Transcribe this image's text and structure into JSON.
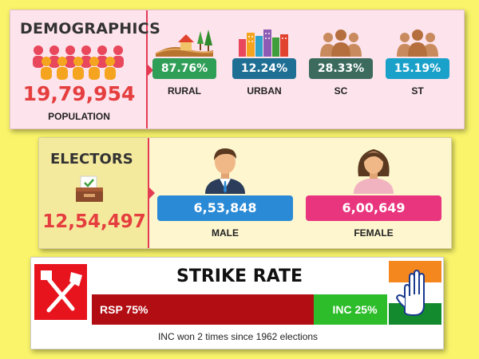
{
  "demographics": {
    "title": "DEMOGRAPHICS",
    "population_value": "19,79,954",
    "population_label": "POPULATION",
    "stats": [
      {
        "value": "87.76%",
        "label": "RURAL",
        "color": "#2f9e57"
      },
      {
        "value": "12.24%",
        "label": "URBAN",
        "color": "#1f6f95"
      },
      {
        "value": "28.33%",
        "label": "SC",
        "color": "#3c6b5e"
      },
      {
        "value": "15.19%",
        "label": "ST",
        "color": "#1aa1c9"
      }
    ]
  },
  "electors": {
    "title": "ELECTORS",
    "total_value": "12,54,497",
    "male": {
      "value": "6,53,848",
      "label": "MALE",
      "color": "#2a8ad6"
    },
    "female": {
      "value": "6,00,649",
      "label": "FEMALE",
      "color": "#e9347e"
    }
  },
  "strike_rate": {
    "title": "STRIKE RATE",
    "rsp": {
      "label": "RSP 75%",
      "percent": 75,
      "color": "#b20d13"
    },
    "inc": {
      "label": "INC 25%",
      "percent": 25,
      "color": "#2dbd2a"
    },
    "footnote": "INC won 2 times since 1962 elections"
  },
  "icons": {
    "population": "people-group-icon",
    "rural": "rural-landscape-icon",
    "urban": "city-skyline-icon",
    "sc": "people-group-icon",
    "st": "people-group-icon",
    "ballot": "ballot-box-icon",
    "male": "male-avatar-icon",
    "female": "female-avatar-icon",
    "rsp_logo": "rsp-spade-hammer-logo",
    "inc_logo": "inc-hand-logo"
  }
}
